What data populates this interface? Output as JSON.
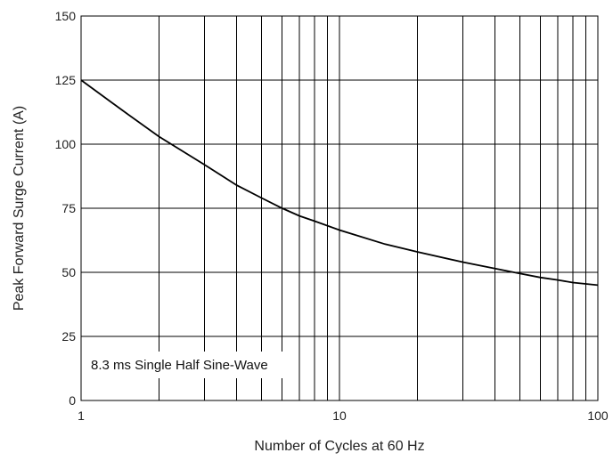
{
  "chart_data": {
    "type": "line",
    "xlabel": "Number of Cycles at 60 Hz",
    "ylabel": "Peak Forward Surge Current (A)",
    "x_scale": "log",
    "xlim": [
      1,
      100
    ],
    "ylim": [
      0,
      150
    ],
    "x_ticks": [
      "1",
      "10",
      "100"
    ],
    "y_ticks": [
      "0",
      "25",
      "50",
      "75",
      "100",
      "125",
      "150"
    ],
    "grid": true,
    "annotation": "8.3 ms Single Half Sine-Wave",
    "series": [
      {
        "x": [
          1,
          1.5,
          2,
          3,
          4,
          5,
          6,
          7,
          8,
          10,
          15,
          20,
          30,
          40,
          50,
          60,
          70,
          80,
          100
        ],
        "values": [
          125,
          112,
          103,
          92,
          84,
          79,
          75,
          72,
          70,
          66.5,
          61,
          58,
          54,
          51.5,
          49.5,
          48,
          47,
          46,
          45
        ]
      }
    ]
  }
}
